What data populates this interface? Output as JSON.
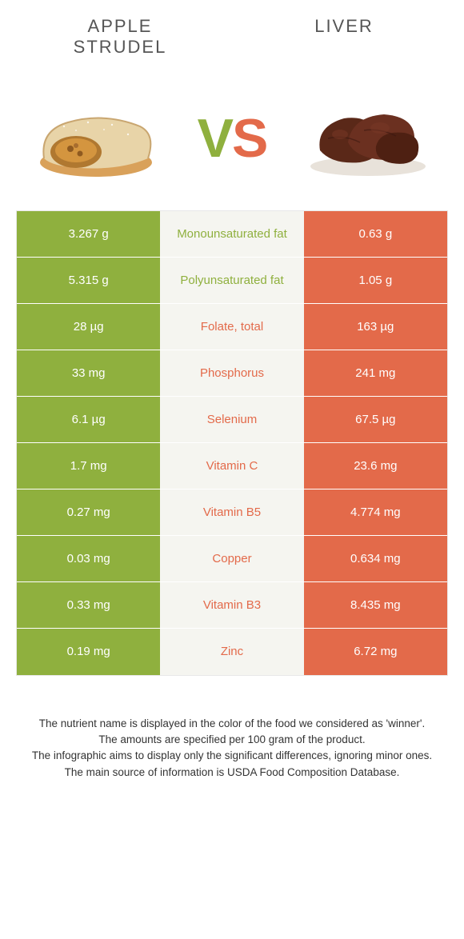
{
  "colors": {
    "green": "#8fb03e",
    "orange": "#e36a4a",
    "mid_bg": "#f5f5f0",
    "border": "#e8e8e8"
  },
  "header": {
    "left_title": "Apple Strudel",
    "right_title": "Liver"
  },
  "vs": {
    "v": "V",
    "s": "S"
  },
  "rows": [
    {
      "left": "3.267 g",
      "label": "Monounsaturated fat",
      "right": "0.63 g",
      "winner": "left"
    },
    {
      "left": "5.315 g",
      "label": "Polyunsaturated fat",
      "right": "1.05 g",
      "winner": "left"
    },
    {
      "left": "28 µg",
      "label": "Folate, total",
      "right": "163 µg",
      "winner": "right"
    },
    {
      "left": "33 mg",
      "label": "Phosphorus",
      "right": "241 mg",
      "winner": "right"
    },
    {
      "left": "6.1 µg",
      "label": "Selenium",
      "right": "67.5 µg",
      "winner": "right"
    },
    {
      "left": "1.7 mg",
      "label": "Vitamin C",
      "right": "23.6 mg",
      "winner": "right"
    },
    {
      "left": "0.27 mg",
      "label": "Vitamin B5",
      "right": "4.774 mg",
      "winner": "right"
    },
    {
      "left": "0.03 mg",
      "label": "Copper",
      "right": "0.634 mg",
      "winner": "right"
    },
    {
      "left": "0.33 mg",
      "label": "Vitamin B3",
      "right": "8.435 mg",
      "winner": "right"
    },
    {
      "left": "0.19 mg",
      "label": "Zinc",
      "right": "6.72 mg",
      "winner": "right"
    }
  ],
  "footnotes": [
    "The nutrient name is displayed in the color of the food we considered as 'winner'.",
    "The amounts are specified per 100 gram of the product.",
    "The infographic aims to display only the significant differences, ignoring minor ones.",
    "The main source of information is USDA Food Composition Database."
  ]
}
